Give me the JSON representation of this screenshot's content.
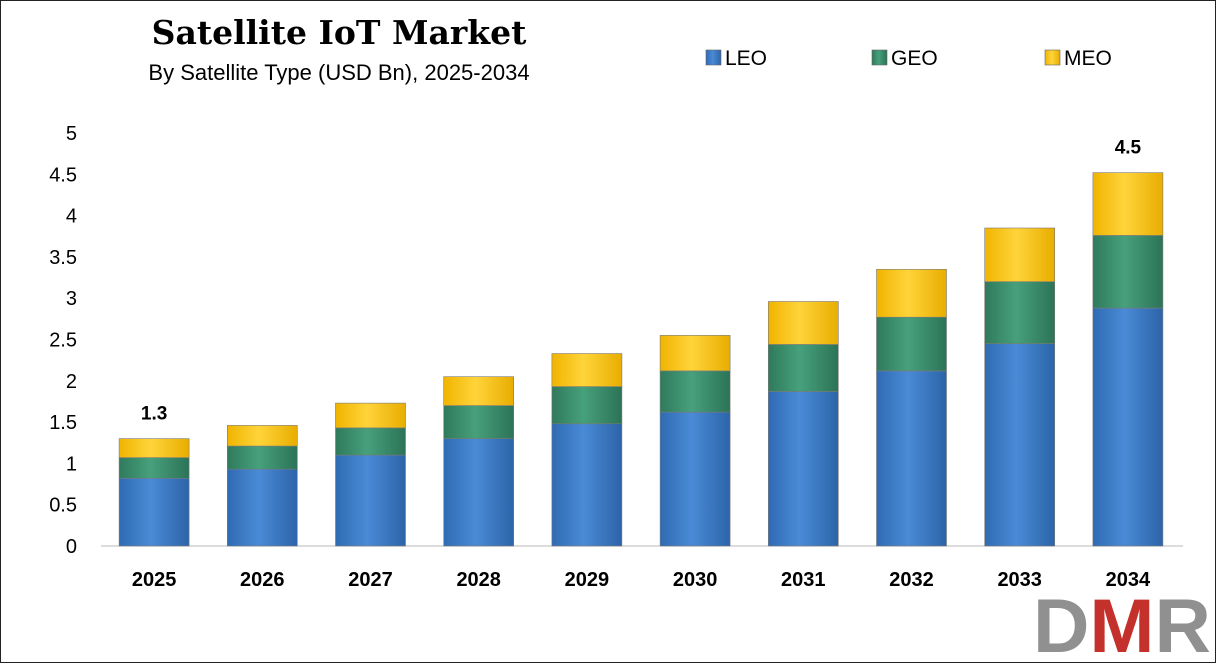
{
  "chart_data": {
    "type": "bar",
    "stacked": true,
    "title": "Satellite IoT Market",
    "subtitle": "By Satellite Type (USD Bn), 2025-2034",
    "categories": [
      "2025",
      "2026",
      "2027",
      "2028",
      "2029",
      "2030",
      "2031",
      "2032",
      "2033",
      "2034"
    ],
    "series": [
      {
        "name": "LEO",
        "color": "#3f7ec8",
        "values": [
          0.82,
          0.93,
          1.1,
          1.3,
          1.48,
          1.62,
          1.87,
          2.12,
          2.45,
          2.88
        ]
      },
      {
        "name": "GEO",
        "color": "#3e9070",
        "values": [
          0.25,
          0.28,
          0.33,
          0.4,
          0.45,
          0.5,
          0.57,
          0.65,
          0.75,
          0.88
        ]
      },
      {
        "name": "MEO",
        "color": "#fdc80f",
        "values": [
          0.23,
          0.25,
          0.3,
          0.35,
          0.4,
          0.43,
          0.52,
          0.58,
          0.65,
          0.76
        ]
      }
    ],
    "data_labels": [
      {
        "category": "2025",
        "text": "1.3"
      },
      {
        "category": "2034",
        "text": "4.5"
      }
    ],
    "yticks": [
      "0",
      "0.5",
      "1",
      "1.5",
      "2",
      "2.5",
      "3",
      "3.5",
      "4",
      "4.5",
      "5"
    ],
    "ylim": [
      0,
      5
    ],
    "xlabel": "",
    "ylabel": "",
    "grid": false,
    "legend": "top-right"
  },
  "logo": {
    "text": "DMR",
    "colors": [
      "#909090",
      "#c4302b"
    ]
  }
}
